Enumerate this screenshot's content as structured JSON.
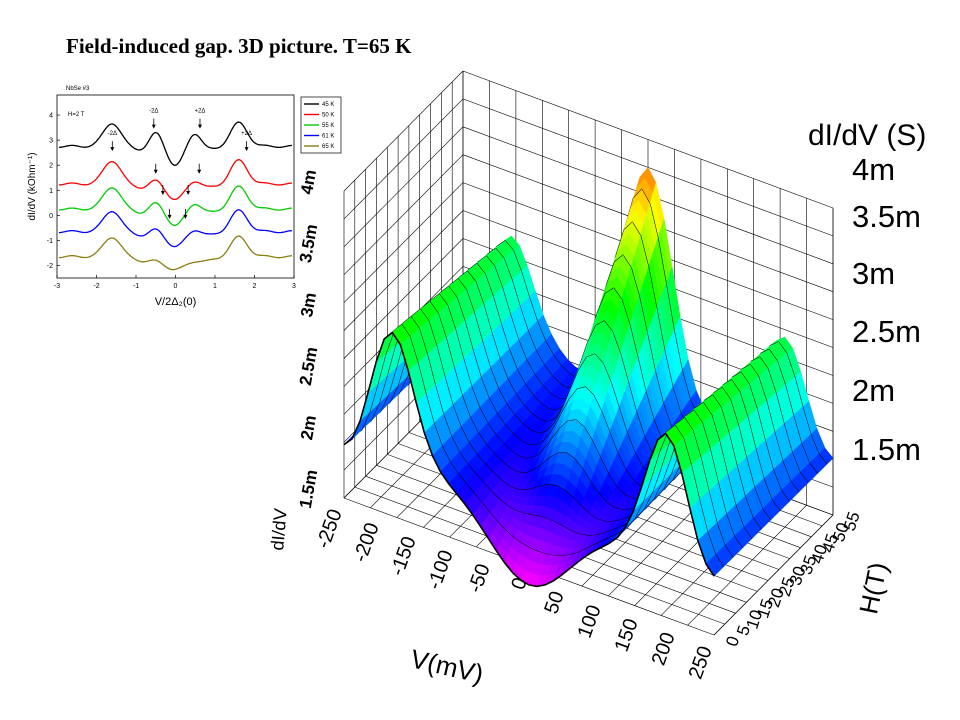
{
  "slide": {
    "title": "Field-induced gap. 3D picture. T=65 K"
  },
  "chart_data": [
    {
      "type": "line",
      "title": "NbSe   #3",
      "annotation_field": "H=2 T",
      "xlabel": "V/2Δ₂(0)",
      "ylabel": "dI/dV (kOhm⁻¹)",
      "xlim": [
        -3,
        3
      ],
      "ylim": [
        -2.5,
        4.8
      ],
      "xticks": [
        "-3",
        "-2",
        "-1",
        "0",
        "1",
        "2",
        "3"
      ],
      "yticks": [
        "-2",
        "-1",
        "0",
        "1",
        "2",
        "3",
        "4"
      ],
      "legend_position": "top-right",
      "gap_marks": {
        "outer": 1.6,
        "inner": 0.38
      },
      "gap_labels": [
        "-2Δ",
        "-2Δ",
        "+2Δ",
        "+2Δ"
      ],
      "series": [
        {
          "name": "45 K",
          "color": "#000000",
          "offset": 2.75,
          "outer_amp": 0.95,
          "inner_amp": 0.85
        },
        {
          "name": "50 K",
          "color": "#ff0000",
          "offset": 1.25,
          "outer_amp": 0.95,
          "inner_amp": 0.45
        },
        {
          "name": "55 K",
          "color": "#00cc00",
          "offset": 0.25,
          "outer_amp": 0.9,
          "inner_amp": 0.55
        },
        {
          "name": "61 K",
          "color": "#0000ff",
          "offset": -0.65,
          "outer_amp": 0.85,
          "inner_amp": 0.4
        },
        {
          "name": "65 K",
          "color": "#8b7d10",
          "offset": -1.65,
          "outer_amp": 0.8,
          "inner_amp": 0.15
        }
      ]
    },
    {
      "type": "area",
      "z_title": "dI/dV (S)",
      "z_axis_label": "dI/dV",
      "xlabel": "V(mV)",
      "ylabel": "H(T)",
      "xticks": [
        "-250",
        "-200",
        "-150",
        "-100",
        "-50",
        "0",
        "50",
        "100",
        "150",
        "200",
        "250"
      ],
      "yticks": [
        "0",
        "5",
        "10",
        "15",
        "20",
        "25",
        "30",
        "35",
        "40",
        "45",
        "50",
        "55"
      ],
      "zticks": [
        "1.5m",
        "2m",
        "2.5m",
        "3m",
        "3.5m",
        "4m"
      ],
      "zticks_left": [
        "1.5m",
        "2m",
        "2.5m",
        "3m",
        "3.5m",
        "4m"
      ],
      "xlim": [
        -250,
        250
      ],
      "ylim": [
        0,
        55
      ],
      "zlim": [
        1.5,
        4.0
      ],
      "z_unit": "mS",
      "surface_model": {
        "baseline": 2.0,
        "outer_peak_mV": 185,
        "outer_peak_width_mV": 28,
        "outer_peak_height": {
          "at_0T": 1.0,
          "at_55T": 0.8
        },
        "central_dip_width_mV": 55,
        "central_dip_depth": {
          "at_0T": 0.65,
          "at_55T": 0.35
        },
        "central_peak_width_mV": 35,
        "central_peak_height": {
          "at_0T": 0.0,
          "at_55T": 2.0
        },
        "inner_ripple_mV": 25,
        "max_value": 4.0,
        "min_value": 1.35
      }
    }
  ]
}
